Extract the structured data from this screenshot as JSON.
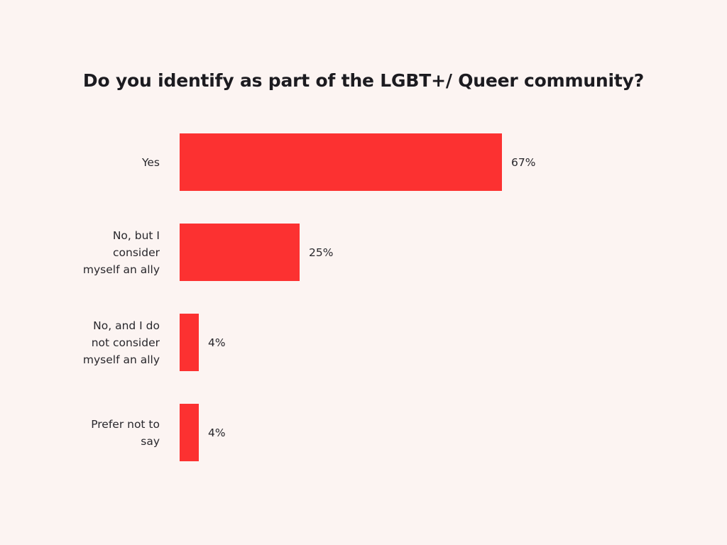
{
  "chart_data": {
    "type": "bar",
    "orientation": "horizontal",
    "title": "Do you identify as part of the LGBT+/ Queer community?",
    "categories": [
      "Yes",
      "No, but I consider myself an ally",
      "No, and I do not consider myself an ally",
      "Prefer not to say"
    ],
    "label_lines": [
      "Yes",
      "No, but I\nconsider\nmyself an ally",
      "No, and I do\nnot consider\nmyself an ally",
      "Prefer not to\nsay"
    ],
    "values": [
      67,
      25,
      4,
      4
    ],
    "value_labels": [
      "67%",
      "25%",
      "4%",
      "4%"
    ],
    "xlim": [
      0,
      100
    ],
    "axes_visible": false,
    "grid": false,
    "legend": "none",
    "bar_color": "#fc3131",
    "background_color": "#fcf4f2",
    "title_color": "#1c1b20",
    "label_color": "#28272c"
  }
}
